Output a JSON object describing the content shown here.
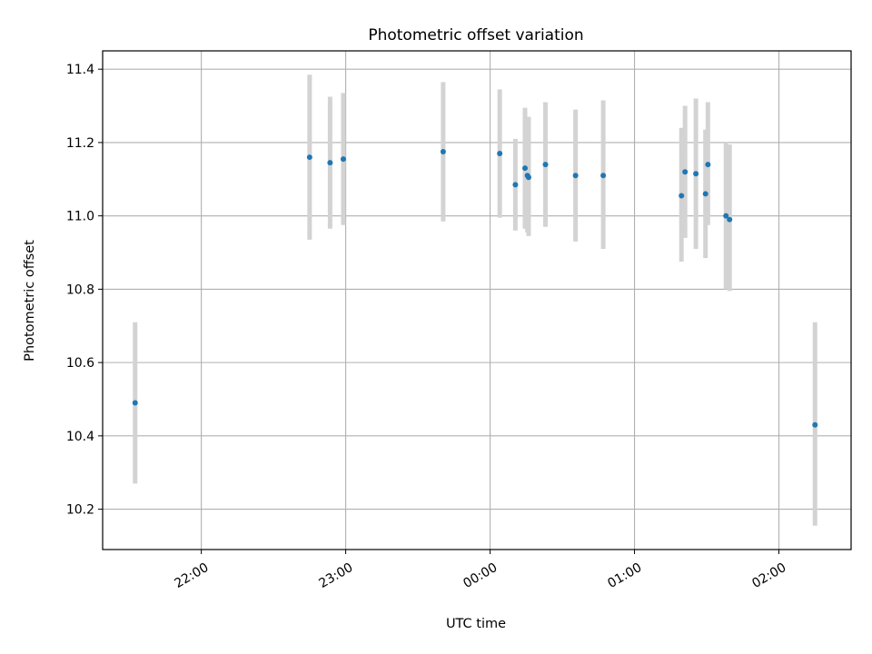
{
  "chart_data": {
    "type": "scatter",
    "title": "Photometric offset variation",
    "xlabel": "UTC time",
    "ylabel": "Photometric offset",
    "x_tick_labels": [
      "22:00",
      "23:00",
      "00:00",
      "01:00",
      "02:00"
    ],
    "x_tick_minutes": [
      0,
      60,
      120,
      180,
      240
    ],
    "y_ticks": [
      10.2,
      10.4,
      10.6,
      10.8,
      11.0,
      11.2,
      11.4
    ],
    "xlim_minutes": [
      -41,
      270
    ],
    "ylim": [
      10.09,
      11.45
    ],
    "grid": true,
    "colors": {
      "point": "#1f77b4",
      "errorbar": "#d3d3d3",
      "grid": "#b0b0b0"
    },
    "series": [
      {
        "points": [
          {
            "t": -27.5,
            "y": 10.49,
            "lo": 10.27,
            "hi": 10.71
          },
          {
            "t": 45.0,
            "y": 11.16,
            "lo": 10.935,
            "hi": 11.385
          },
          {
            "t": 53.5,
            "y": 11.145,
            "lo": 10.965,
            "hi": 11.325
          },
          {
            "t": 59.0,
            "y": 11.155,
            "lo": 10.975,
            "hi": 11.335
          },
          {
            "t": 100.5,
            "y": 11.175,
            "lo": 10.985,
            "hi": 11.365
          },
          {
            "t": 124.0,
            "y": 11.17,
            "lo": 10.995,
            "hi": 11.345
          },
          {
            "t": 130.5,
            "y": 11.085,
            "lo": 10.96,
            "hi": 11.21
          },
          {
            "t": 134.5,
            "y": 11.13,
            "lo": 10.965,
            "hi": 11.295
          },
          {
            "t": 135.5,
            "y": 11.11,
            "lo": 10.955,
            "hi": 11.265
          },
          {
            "t": 136.0,
            "y": 11.105,
            "lo": 10.945,
            "hi": 11.27
          },
          {
            "t": 143.0,
            "y": 11.14,
            "lo": 10.97,
            "hi": 11.31
          },
          {
            "t": 155.5,
            "y": 11.11,
            "lo": 10.93,
            "hi": 11.29
          },
          {
            "t": 167.0,
            "y": 11.11,
            "lo": 10.91,
            "hi": 11.315
          },
          {
            "t": 199.5,
            "y": 11.055,
            "lo": 10.875,
            "hi": 11.24
          },
          {
            "t": 201.0,
            "y": 11.12,
            "lo": 10.94,
            "hi": 11.3
          },
          {
            "t": 205.5,
            "y": 11.115,
            "lo": 10.91,
            "hi": 11.32
          },
          {
            "t": 209.5,
            "y": 11.06,
            "lo": 10.885,
            "hi": 11.235
          },
          {
            "t": 210.5,
            "y": 11.14,
            "lo": 10.975,
            "hi": 11.31
          },
          {
            "t": 218.0,
            "y": 11.0,
            "lo": 10.8,
            "hi": 11.2
          },
          {
            "t": 219.5,
            "y": 10.99,
            "lo": 10.795,
            "hi": 11.195
          },
          {
            "t": 255.0,
            "y": 10.43,
            "lo": 10.155,
            "hi": 10.71
          }
        ]
      }
    ]
  }
}
